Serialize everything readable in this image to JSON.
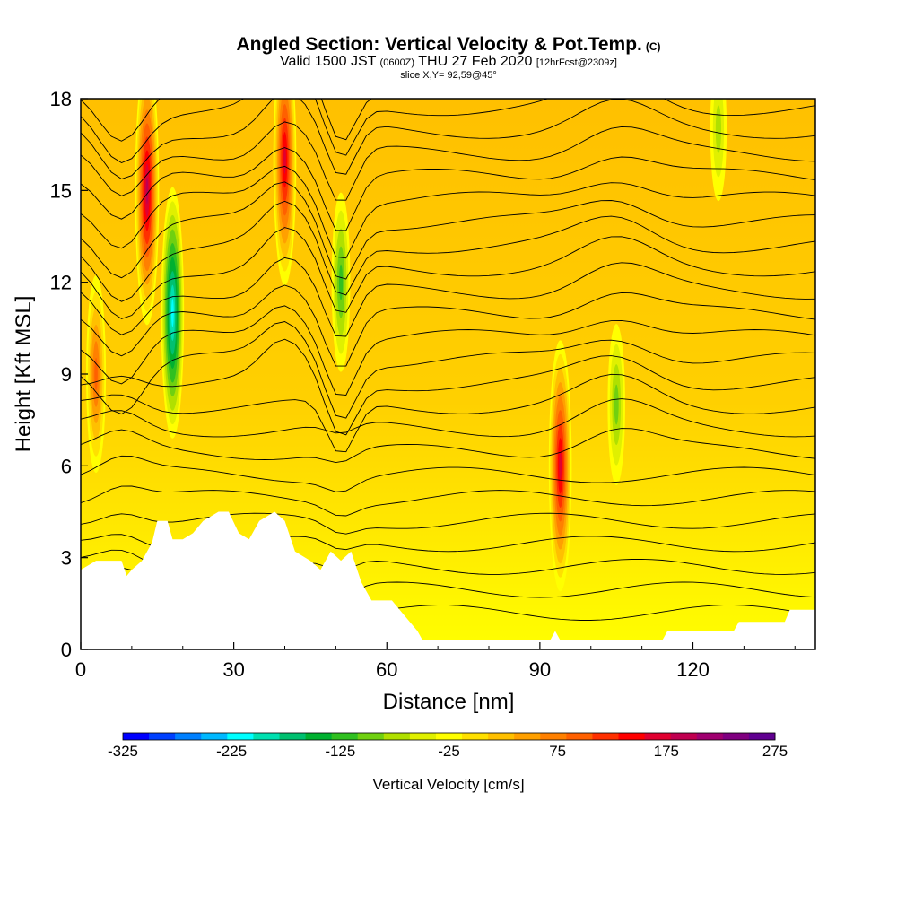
{
  "header": {
    "title": "Angled Section: Vertical Velocity & Pot.Temp.",
    "title_units": "(C)",
    "valid_prefix": "Valid 1500 JST",
    "valid_utc": "(0600Z)",
    "valid_date": "THU 27 Feb 2020",
    "forecast": "[12hrFcst@2309z]",
    "slice": "slice X,Y= 92,59@45°"
  },
  "chart_data": {
    "type": "heatmap",
    "title": "Angled Section: Vertical Velocity & Pot.Temp. (C)",
    "xlabel": "Distance [nm]",
    "ylabel": "Height [Kft MSL]",
    "xlim": [
      0,
      144
    ],
    "ylim": [
      0,
      18
    ],
    "x_ticks": [
      0,
      30,
      60,
      90,
      120
    ],
    "y_ticks": [
      0,
      3,
      6,
      9,
      12,
      15,
      18
    ],
    "x_tick_labels": [
      "0",
      "30",
      "60",
      "90",
      "120"
    ],
    "y_tick_labels": [
      "0",
      "3",
      "6",
      "9",
      "12",
      "15",
      "18"
    ],
    "colorbar": {
      "label": "Vertical Velocity [cm/s]",
      "tick_values": [
        -325,
        -225,
        -125,
        -25,
        75,
        175,
        275
      ],
      "tick_labels": [
        "-325",
        "-225",
        "-125",
        "-25",
        "75",
        "175",
        "275"
      ],
      "colors": [
        "#0000ff",
        "#0040ff",
        "#0080ff",
        "#00b8ff",
        "#00ffff",
        "#00e0b0",
        "#00c070",
        "#00b030",
        "#30c020",
        "#70d010",
        "#b0e000",
        "#e0f000",
        "#ffff00",
        "#ffe000",
        "#ffc000",
        "#ffa000",
        "#ff8000",
        "#ff6000",
        "#ff3000",
        "#ff0000",
        "#e00030",
        "#c00050",
        "#a00070",
        "#800080",
        "#600090"
      ]
    },
    "terrain": [
      [
        0,
        2.6
      ],
      [
        3,
        2.9
      ],
      [
        8,
        2.9
      ],
      [
        9,
        2.4
      ],
      [
        10,
        2.6
      ],
      [
        12,
        2.9
      ],
      [
        14,
        3.5
      ],
      [
        15,
        4.2
      ],
      [
        17,
        4.2
      ],
      [
        18,
        3.6
      ],
      [
        20,
        3.6
      ],
      [
        22,
        3.8
      ],
      [
        24,
        4.2
      ],
      [
        27,
        4.5
      ],
      [
        29,
        4.5
      ],
      [
        31,
        3.8
      ],
      [
        33,
        3.6
      ],
      [
        35,
        4.2
      ],
      [
        38,
        4.5
      ],
      [
        40,
        4.2
      ],
      [
        42,
        3.2
      ],
      [
        45,
        2.9
      ],
      [
        47,
        2.6
      ],
      [
        49,
        3.2
      ],
      [
        51,
        2.9
      ],
      [
        53,
        3.2
      ],
      [
        55,
        2.2
      ],
      [
        57,
        1.6
      ],
      [
        61,
        1.6
      ],
      [
        63,
        1.2
      ],
      [
        66,
        0.6
      ],
      [
        67,
        0.3
      ],
      [
        92,
        0.3
      ],
      [
        93,
        0.6
      ],
      [
        94,
        0.3
      ],
      [
        114,
        0.3
      ],
      [
        115,
        0.6
      ],
      [
        128,
        0.6
      ],
      [
        129,
        0.9
      ],
      [
        138,
        0.9
      ],
      [
        139,
        1.3
      ],
      [
        144,
        1.3
      ]
    ],
    "velocity_features": [
      {
        "x": 13,
        "y": 15,
        "value": 200
      },
      {
        "x": 18,
        "y": 11,
        "value": -225
      },
      {
        "x": 40,
        "y": 16,
        "value": 175
      },
      {
        "x": 51,
        "y": 12,
        "value": -125
      },
      {
        "x": 94,
        "y": 6,
        "value": 175
      },
      {
        "x": 105,
        "y": 8,
        "value": -100
      },
      {
        "x": 125,
        "y": 17,
        "value": -75
      },
      {
        "x": 3,
        "y": 9,
        "value": 100
      }
    ],
    "contour_label": "pot-temp isotherm"
  }
}
